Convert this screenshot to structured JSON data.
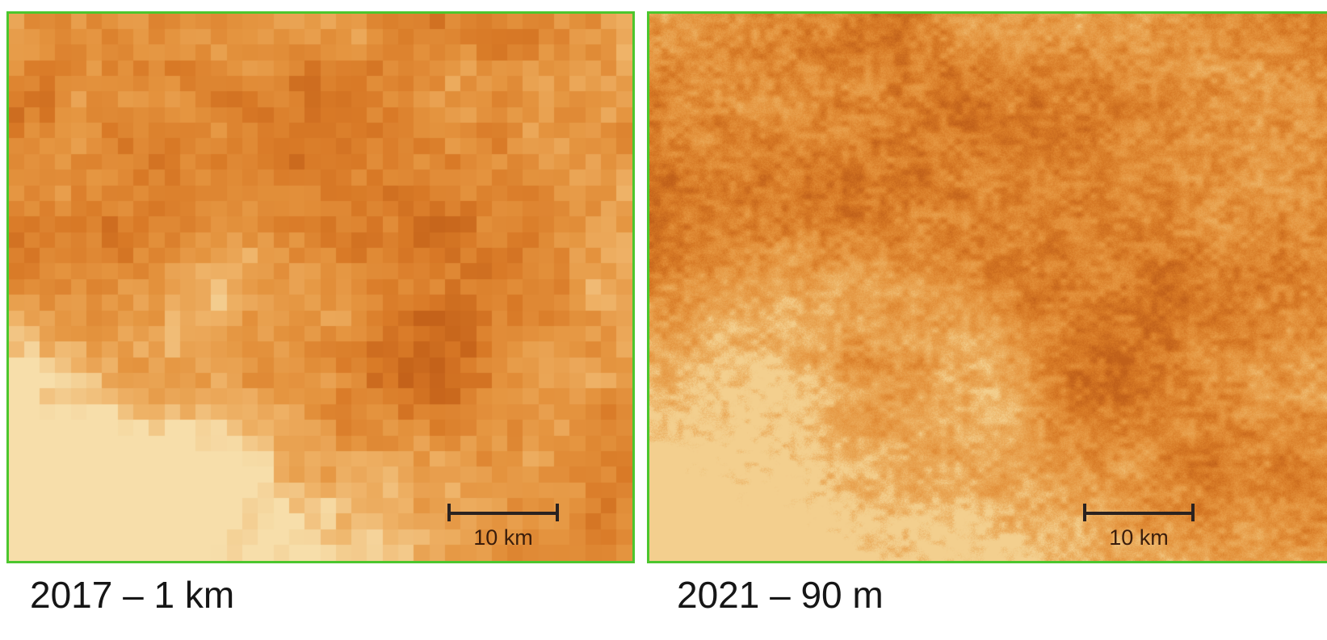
{
  "panels": [
    {
      "caption": "2017 – 1 km",
      "scale_label": "10 km",
      "border_color": "#4cc62e",
      "palette": [
        "#f7deaa",
        "#efb368",
        "#e59540",
        "#d97a27",
        "#c4621a"
      ]
    },
    {
      "caption": "2021 – 90 m",
      "scale_label": "10 km",
      "border_color": "#4cc62e",
      "palette": [
        "#f3cf8e",
        "#ebac5c",
        "#e4933d",
        "#d67824",
        "#c0601a"
      ]
    }
  ]
}
